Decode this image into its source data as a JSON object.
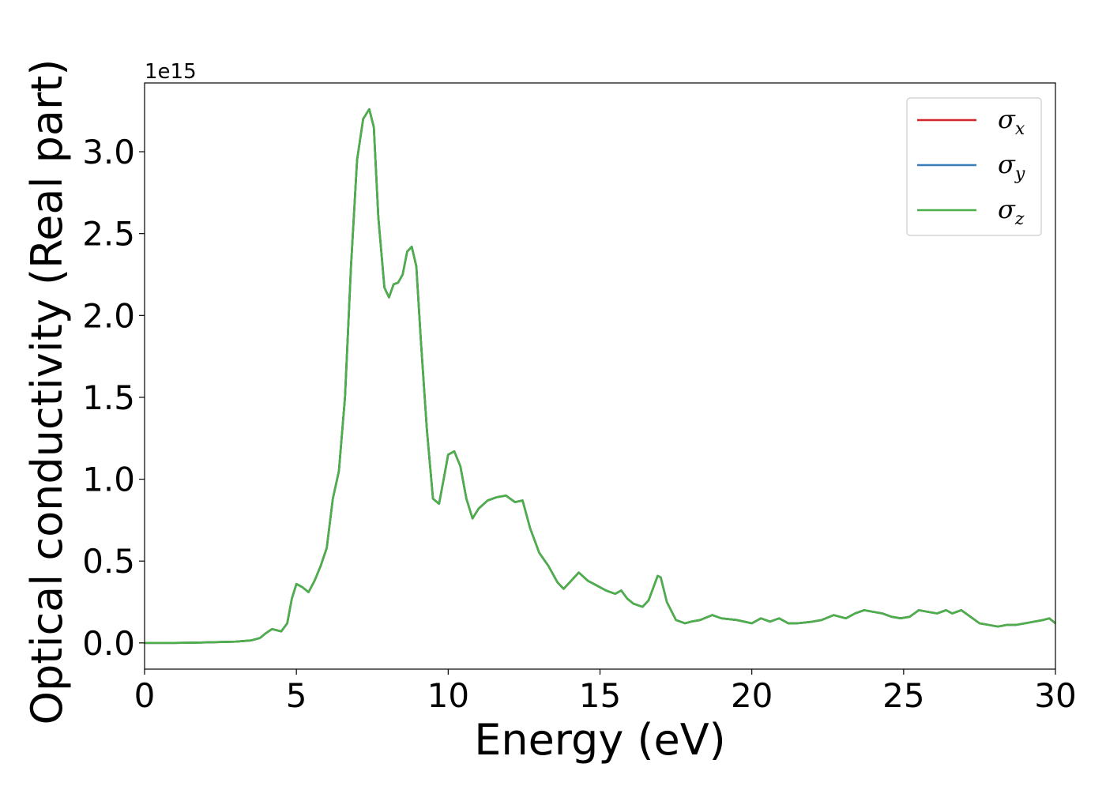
{
  "chart_data": {
    "type": "line",
    "xlabel": "Energy (eV)",
    "ylabel": "Optical conductivity (Real part)",
    "y_offset_text": "1e15",
    "xlim": [
      0,
      30
    ],
    "ylim": [
      -0.16,
      3.42
    ],
    "y_scale_multiplier": 1000000000000000.0,
    "x_ticks": [
      0,
      5,
      10,
      15,
      20,
      25,
      30
    ],
    "x_tick_labels": [
      "0",
      "5",
      "10",
      "15",
      "20",
      "25",
      "30"
    ],
    "y_ticks": [
      0.0,
      0.5,
      1.0,
      1.5,
      2.0,
      2.5,
      3.0
    ],
    "y_tick_labels": [
      "0.0",
      "0.5",
      "1.0",
      "1.5",
      "2.0",
      "2.5",
      "3.0"
    ],
    "grid": false,
    "legend_position": "top-right",
    "legend": [
      {
        "symbol": "σ",
        "subscript": "x",
        "color": "#d62728"
      },
      {
        "symbol": "σ",
        "subscript": "y",
        "color": "#377eb8"
      },
      {
        "symbol": "σ",
        "subscript": "z",
        "color": "#4daf4a"
      }
    ],
    "x": [
      0,
      1,
      2,
      3,
      3.5,
      3.8,
      4.0,
      4.2,
      4.5,
      4.7,
      4.85,
      5.0,
      5.2,
      5.4,
      5.6,
      5.8,
      6.0,
      6.2,
      6.4,
      6.6,
      6.8,
      7.0,
      7.2,
      7.4,
      7.55,
      7.7,
      7.9,
      8.05,
      8.2,
      8.35,
      8.5,
      8.65,
      8.8,
      8.95,
      9.1,
      9.3,
      9.5,
      9.7,
      9.85,
      10.0,
      10.2,
      10.4,
      10.6,
      10.8,
      11.0,
      11.3,
      11.6,
      11.9,
      12.2,
      12.45,
      12.7,
      13.0,
      13.3,
      13.6,
      13.8,
      14.0,
      14.3,
      14.6,
      14.9,
      15.2,
      15.5,
      15.7,
      15.9,
      16.1,
      16.4,
      16.6,
      16.9,
      17.0,
      17.2,
      17.5,
      17.8,
      18.0,
      18.3,
      18.7,
      19.0,
      19.5,
      20.0,
      20.3,
      20.6,
      20.9,
      21.2,
      21.5,
      22.0,
      22.3,
      22.7,
      23.1,
      23.4,
      23.7,
      24.0,
      24.3,
      24.6,
      24.9,
      25.2,
      25.5,
      25.8,
      26.1,
      26.4,
      26.6,
      26.9,
      27.2,
      27.5,
      27.8,
      28.1,
      28.4,
      28.7,
      29.0,
      29.3,
      29.6,
      29.8,
      30.0
    ],
    "series": [
      {
        "color": "#d62728",
        "values": [
          0,
          0,
          0.003,
          0.008,
          0.015,
          0.03,
          0.06,
          0.085,
          0.07,
          0.12,
          0.27,
          0.36,
          0.34,
          0.31,
          0.38,
          0.47,
          0.58,
          0.88,
          1.05,
          1.5,
          2.3,
          2.95,
          3.2,
          3.26,
          3.15,
          2.6,
          2.17,
          2.11,
          2.19,
          2.2,
          2.25,
          2.39,
          2.42,
          2.3,
          1.85,
          1.3,
          0.88,
          0.85,
          1.0,
          1.15,
          1.17,
          1.08,
          0.88,
          0.76,
          0.82,
          0.87,
          0.89,
          0.9,
          0.86,
          0.87,
          0.7,
          0.55,
          0.47,
          0.37,
          0.33,
          0.37,
          0.43,
          0.38,
          0.35,
          0.32,
          0.3,
          0.32,
          0.27,
          0.24,
          0.22,
          0.26,
          0.41,
          0.4,
          0.25,
          0.14,
          0.12,
          0.13,
          0.14,
          0.17,
          0.15,
          0.14,
          0.12,
          0.15,
          0.13,
          0.15,
          0.12,
          0.12,
          0.13,
          0.14,
          0.17,
          0.15,
          0.18,
          0.2,
          0.19,
          0.18,
          0.16,
          0.15,
          0.16,
          0.2,
          0.19,
          0.18,
          0.2,
          0.18,
          0.2,
          0.16,
          0.12,
          0.11,
          0.1,
          0.11,
          0.11,
          0.12,
          0.13,
          0.14,
          0.15,
          0.12
        ]
      },
      {
        "color": "#377eb8",
        "values": [
          0,
          0,
          0.003,
          0.008,
          0.015,
          0.03,
          0.06,
          0.085,
          0.07,
          0.12,
          0.27,
          0.36,
          0.34,
          0.31,
          0.38,
          0.47,
          0.58,
          0.88,
          1.05,
          1.5,
          2.3,
          2.95,
          3.2,
          3.26,
          3.15,
          2.6,
          2.17,
          2.11,
          2.19,
          2.2,
          2.25,
          2.39,
          2.42,
          2.3,
          1.85,
          1.3,
          0.88,
          0.85,
          1.0,
          1.15,
          1.17,
          1.08,
          0.88,
          0.76,
          0.82,
          0.87,
          0.89,
          0.9,
          0.86,
          0.87,
          0.7,
          0.55,
          0.47,
          0.37,
          0.33,
          0.37,
          0.43,
          0.38,
          0.35,
          0.32,
          0.3,
          0.32,
          0.27,
          0.24,
          0.22,
          0.26,
          0.41,
          0.4,
          0.25,
          0.14,
          0.12,
          0.13,
          0.14,
          0.17,
          0.15,
          0.14,
          0.12,
          0.15,
          0.13,
          0.15,
          0.12,
          0.12,
          0.13,
          0.14,
          0.17,
          0.15,
          0.18,
          0.2,
          0.19,
          0.18,
          0.16,
          0.15,
          0.16,
          0.2,
          0.19,
          0.18,
          0.2,
          0.18,
          0.2,
          0.16,
          0.12,
          0.11,
          0.1,
          0.11,
          0.11,
          0.12,
          0.13,
          0.14,
          0.15,
          0.12
        ]
      },
      {
        "color": "#4daf4a",
        "values": [
          0,
          0,
          0.003,
          0.008,
          0.015,
          0.03,
          0.06,
          0.085,
          0.07,
          0.12,
          0.27,
          0.36,
          0.34,
          0.31,
          0.38,
          0.47,
          0.58,
          0.88,
          1.05,
          1.5,
          2.3,
          2.95,
          3.2,
          3.26,
          3.15,
          2.6,
          2.17,
          2.11,
          2.19,
          2.2,
          2.25,
          2.39,
          2.42,
          2.3,
          1.85,
          1.3,
          0.88,
          0.85,
          1.0,
          1.15,
          1.17,
          1.08,
          0.88,
          0.76,
          0.82,
          0.87,
          0.89,
          0.9,
          0.86,
          0.87,
          0.7,
          0.55,
          0.47,
          0.37,
          0.33,
          0.37,
          0.43,
          0.38,
          0.35,
          0.32,
          0.3,
          0.32,
          0.27,
          0.24,
          0.22,
          0.26,
          0.41,
          0.4,
          0.25,
          0.14,
          0.12,
          0.13,
          0.14,
          0.17,
          0.15,
          0.14,
          0.12,
          0.15,
          0.13,
          0.15,
          0.12,
          0.12,
          0.13,
          0.14,
          0.17,
          0.15,
          0.18,
          0.2,
          0.19,
          0.18,
          0.16,
          0.15,
          0.16,
          0.2,
          0.19,
          0.18,
          0.2,
          0.18,
          0.2,
          0.16,
          0.12,
          0.11,
          0.1,
          0.11,
          0.11,
          0.12,
          0.13,
          0.14,
          0.15,
          0.12
        ]
      }
    ]
  }
}
